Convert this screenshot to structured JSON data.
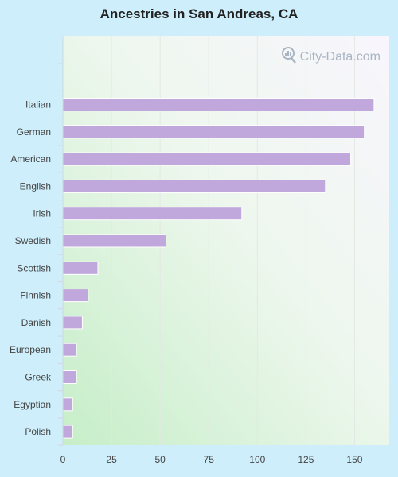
{
  "chart_data": {
    "type": "bar",
    "orientation": "horizontal",
    "title": "Ancestries in San Andreas, CA",
    "categories": [
      "Italian",
      "German",
      "American",
      "English",
      "Irish",
      "Swedish",
      "Scottish",
      "Finnish",
      "Danish",
      "European",
      "Greek",
      "Egyptian",
      "Polish"
    ],
    "values": [
      160,
      155,
      148,
      135,
      92,
      53,
      18,
      13,
      10,
      7,
      7,
      5,
      5
    ],
    "xlim": [
      0,
      170
    ],
    "xticks": [
      0,
      25,
      50,
      75,
      100,
      125,
      150
    ],
    "xlabel": "",
    "ylabel": "",
    "grid": true,
    "colors": {
      "bar": "#c0a8dc",
      "bar_stroke": "#ffffff"
    }
  },
  "watermark": {
    "text": "City-Data.com",
    "icon": "magnifier-chart-icon"
  }
}
